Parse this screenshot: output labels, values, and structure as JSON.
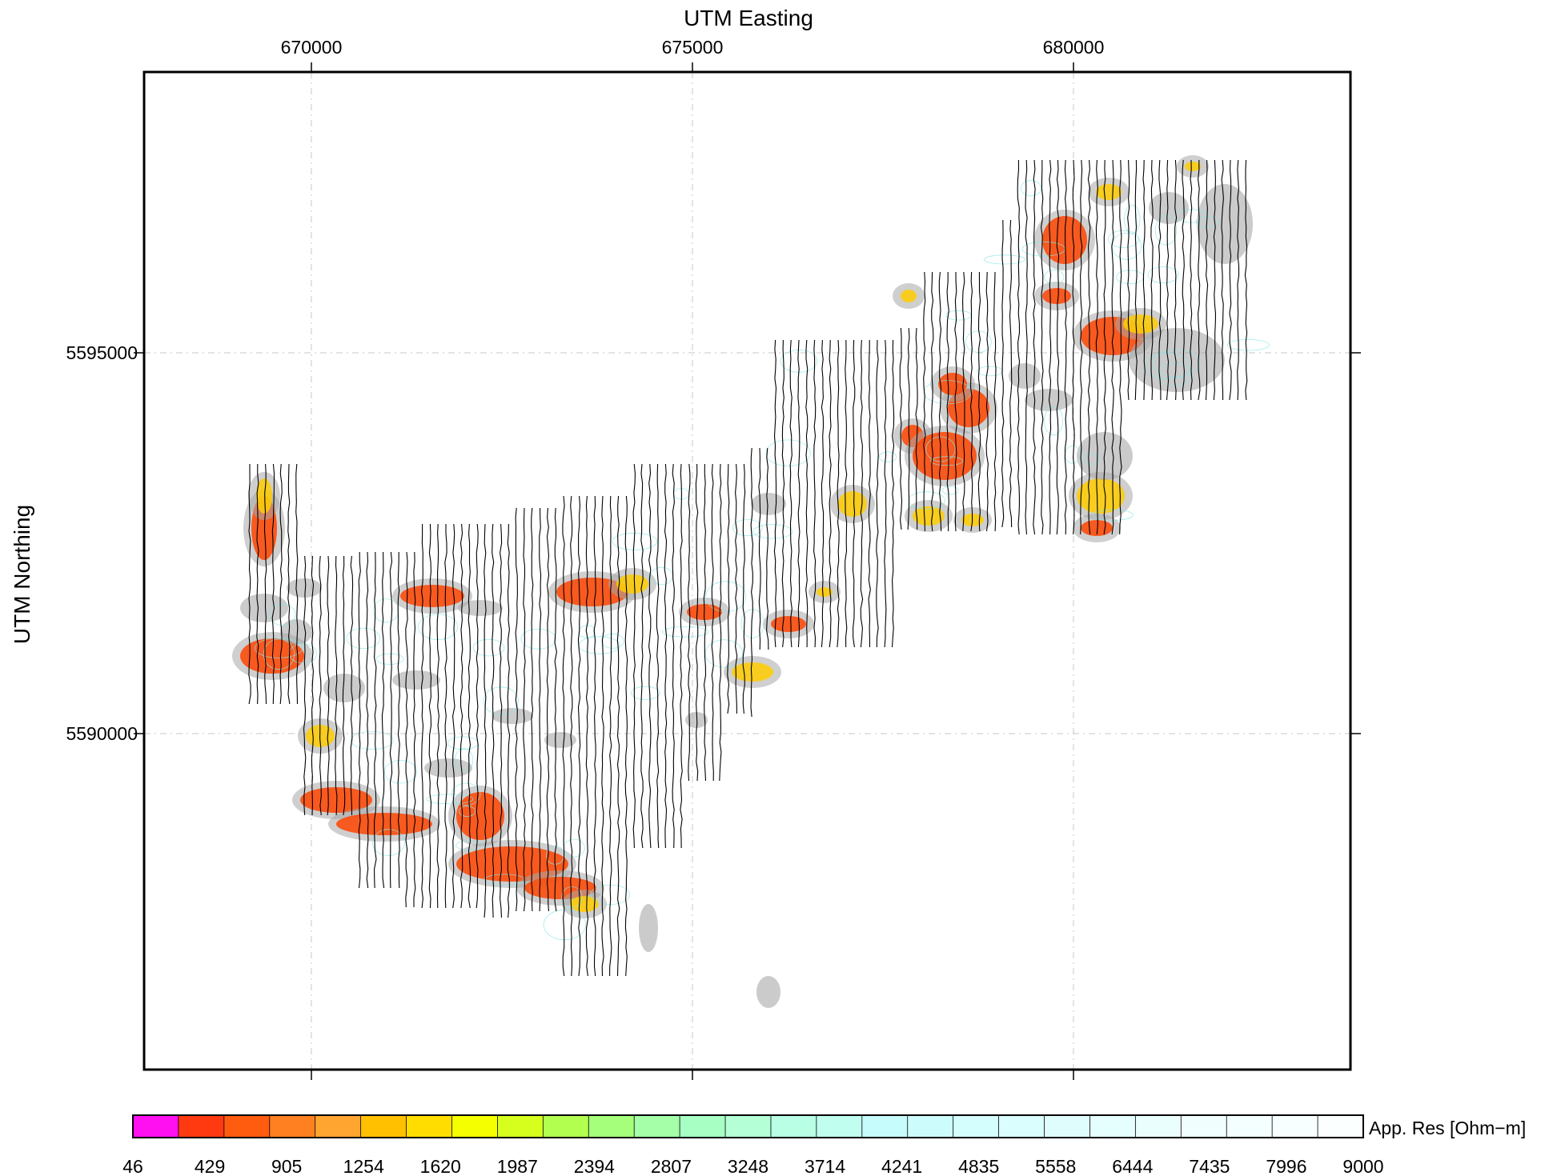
{
  "map": {
    "x_axis_title": "UTM Easting",
    "y_axis_title": "UTM Northing",
    "x_ticks": [
      {
        "label": "670000",
        "value": 670000
      },
      {
        "label": "675000",
        "value": 675000
      },
      {
        "label": "680000",
        "value": 680000
      }
    ],
    "y_ticks": [
      {
        "label": "5595000",
        "value": 5595000
      },
      {
        "label": "5590000",
        "value": 5590000
      }
    ],
    "gridlines": true,
    "line_color": "#000000",
    "anomaly_colors": {
      "high_conductive": "#ff4400",
      "moderate": "#ffcc00",
      "background": "#a8a8a8",
      "contours": "#8fe6e6"
    }
  },
  "colorbar": {
    "title": "App. Res [Ohm−m]",
    "labels": [
      "46",
      "429",
      "905",
      "1254",
      "1620",
      "1987",
      "2394",
      "2807",
      "3248",
      "3714",
      "4241",
      "4835",
      "5558",
      "6444",
      "7435",
      "7996",
      "9000"
    ],
    "colors": [
      "#ff10f0",
      "#ff3a10",
      "#ff5c10",
      "#ff8020",
      "#ffa530",
      "#ffc000",
      "#ffdd00",
      "#f6ff00",
      "#d6ff1e",
      "#b2ff50",
      "#a6ff7a",
      "#a4ffa8",
      "#a8ffc4",
      "#b4ffd6",
      "#b8ffe6",
      "#c0fff0",
      "#c6fcfc",
      "#cdfcfc",
      "#d4fdfd",
      "#dafdfd",
      "#e0fdfd",
      "#e5fefe",
      "#ebfefe",
      "#f0fefe",
      "#f4ffff",
      "#f8ffff",
      "#fcffff"
    ]
  }
}
